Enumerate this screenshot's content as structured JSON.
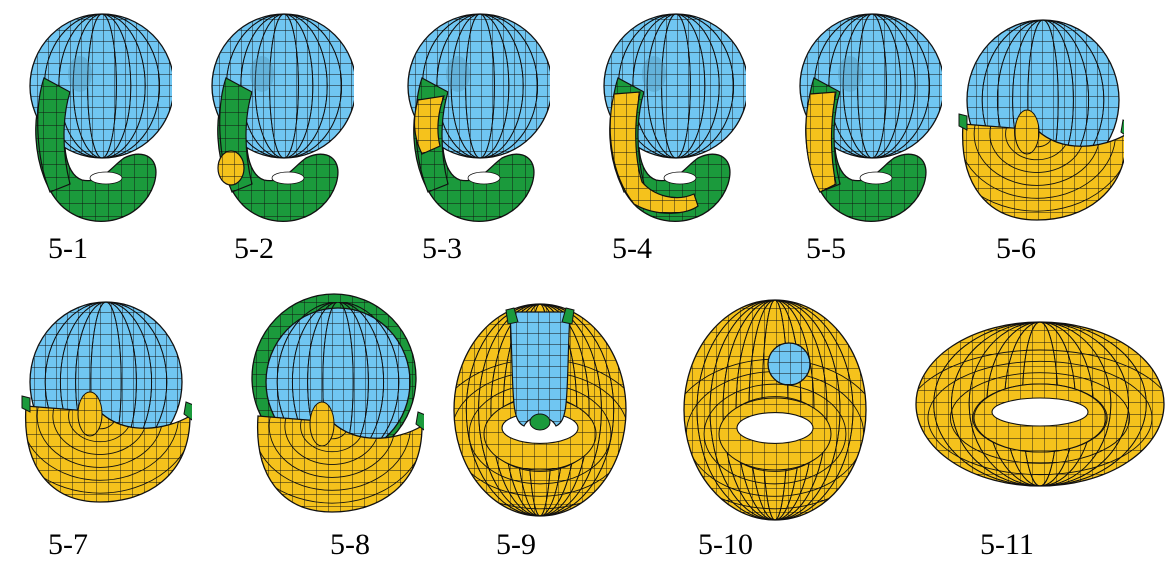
{
  "colors": {
    "blue": "#70c6f2",
    "green": "#1b9a3c",
    "yellow": "#f5c21c",
    "line": "#111111"
  },
  "figures": [
    {
      "label": "5-1",
      "kind": "knot",
      "yellow_fraction": 0
    },
    {
      "label": "5-2",
      "kind": "knot",
      "yellow_fraction": 0.1
    },
    {
      "label": "5-3",
      "kind": "knot",
      "yellow_fraction": 0.25
    },
    {
      "label": "5-4",
      "kind": "knot",
      "yellow_fraction": 0.6
    },
    {
      "label": "5-5",
      "kind": "knot",
      "yellow_fraction": 0.5
    },
    {
      "label": "5-6",
      "kind": "bowl",
      "yellow_fraction": 0.5
    },
    {
      "label": "5-7",
      "kind": "bowl",
      "yellow_fraction": 0.55
    },
    {
      "label": "5-8",
      "kind": "bowl-green",
      "yellow_fraction": 0.6
    },
    {
      "label": "5-9",
      "kind": "torus-open",
      "yellow_fraction": 0.8
    },
    {
      "label": "5-10",
      "kind": "torus-hole",
      "yellow_fraction": 0.95
    },
    {
      "label": "5-11",
      "kind": "torus",
      "yellow_fraction": 1
    }
  ]
}
